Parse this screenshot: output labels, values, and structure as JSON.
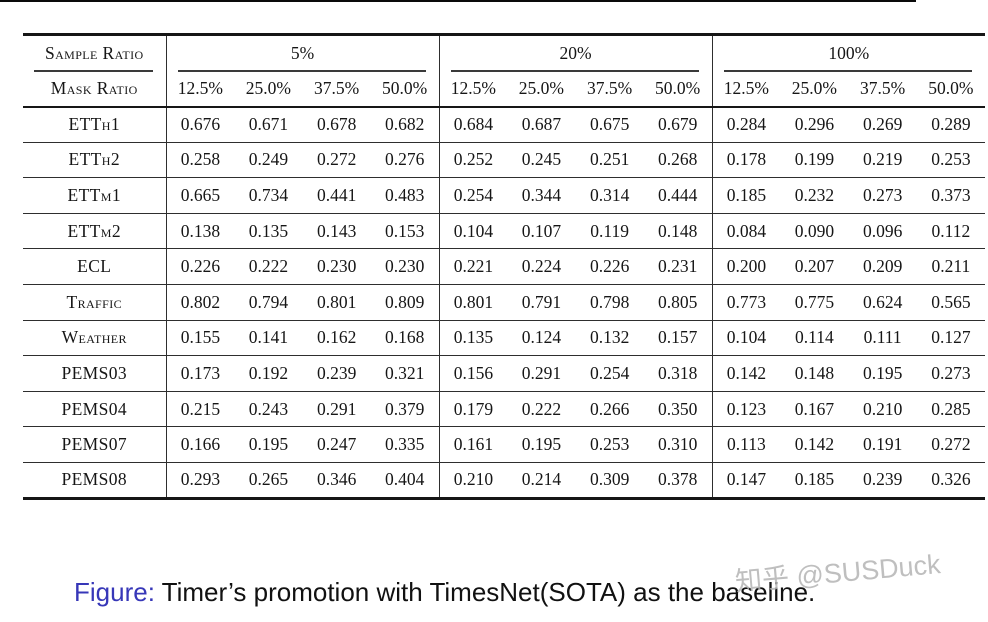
{
  "table": {
    "header": {
      "sample_ratio_label": "Sample Ratio",
      "mask_ratio_label": "Mask Ratio",
      "groups": [
        {
          "label": "5%",
          "mask_ratios": [
            "12.5%",
            "25.0%",
            "37.5%",
            "50.0%"
          ]
        },
        {
          "label": "20%",
          "mask_ratios": [
            "12.5%",
            "25.0%",
            "37.5%",
            "50.0%"
          ]
        },
        {
          "label": "100%",
          "mask_ratios": [
            "12.5%",
            "25.0%",
            "37.5%",
            "50.0%"
          ]
        }
      ]
    },
    "rows": [
      {
        "dataset": "ETTh1",
        "values": [
          "0.676",
          "0.671",
          "0.678",
          "0.682",
          "0.684",
          "0.687",
          "0.675",
          "0.679",
          "0.284",
          "0.296",
          "0.269",
          "0.289"
        ]
      },
      {
        "dataset": "ETTh2",
        "values": [
          "0.258",
          "0.249",
          "0.272",
          "0.276",
          "0.252",
          "0.245",
          "0.251",
          "0.268",
          "0.178",
          "0.199",
          "0.219",
          "0.253"
        ]
      },
      {
        "dataset": "ETTm1",
        "values": [
          "0.665",
          "0.734",
          "0.441",
          "0.483",
          "0.254",
          "0.344",
          "0.314",
          "0.444",
          "0.185",
          "0.232",
          "0.273",
          "0.373"
        ]
      },
      {
        "dataset": "ETTm2",
        "values": [
          "0.138",
          "0.135",
          "0.143",
          "0.153",
          "0.104",
          "0.107",
          "0.119",
          "0.148",
          "0.084",
          "0.090",
          "0.096",
          "0.112"
        ]
      },
      {
        "dataset": "ECL",
        "values": [
          "0.226",
          "0.222",
          "0.230",
          "0.230",
          "0.221",
          "0.224",
          "0.226",
          "0.231",
          "0.200",
          "0.207",
          "0.209",
          "0.211"
        ]
      },
      {
        "dataset": "Traffic",
        "values": [
          "0.802",
          "0.794",
          "0.801",
          "0.809",
          "0.801",
          "0.791",
          "0.798",
          "0.805",
          "0.773",
          "0.775",
          "0.624",
          "0.565"
        ]
      },
      {
        "dataset": "Weather",
        "values": [
          "0.155",
          "0.141",
          "0.162",
          "0.168",
          "0.135",
          "0.124",
          "0.132",
          "0.157",
          "0.104",
          "0.114",
          "0.111",
          "0.127"
        ]
      },
      {
        "dataset": "PEMS03",
        "values": [
          "0.173",
          "0.192",
          "0.239",
          "0.321",
          "0.156",
          "0.291",
          "0.254",
          "0.318",
          "0.142",
          "0.148",
          "0.195",
          "0.273"
        ]
      },
      {
        "dataset": "PEMS04",
        "values": [
          "0.215",
          "0.243",
          "0.291",
          "0.379",
          "0.179",
          "0.222",
          "0.266",
          "0.350",
          "0.123",
          "0.167",
          "0.210",
          "0.285"
        ]
      },
      {
        "dataset": "PEMS07",
        "values": [
          "0.166",
          "0.195",
          "0.247",
          "0.335",
          "0.161",
          "0.195",
          "0.253",
          "0.310",
          "0.113",
          "0.142",
          "0.191",
          "0.272"
        ]
      },
      {
        "dataset": "PEMS08",
        "values": [
          "0.293",
          "0.265",
          "0.346",
          "0.404",
          "0.210",
          "0.214",
          "0.309",
          "0.378",
          "0.147",
          "0.185",
          "0.239",
          "0.326"
        ]
      }
    ]
  },
  "caption": {
    "prefix": "Figure:",
    "text": " Timer’s promotion with TimesNet(SOTA) as the baseline."
  },
  "watermark": "知乎 @SUSDuck",
  "colors": {
    "caption_prefix_blue": "#3737b8",
    "watermark_gray": "#b5b5b5",
    "rule_black": "#161616"
  }
}
